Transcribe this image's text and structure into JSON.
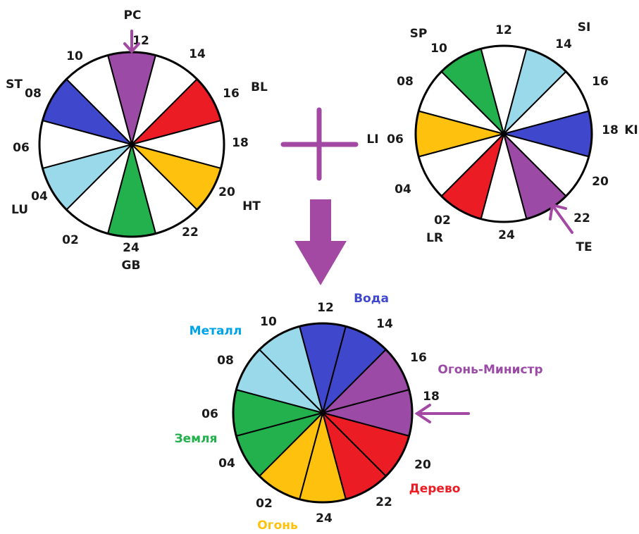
{
  "colors": {
    "purple": "#9B4BA6",
    "red": "#EC1C24",
    "yellow": "#FEC20E",
    "green": "#22B14C",
    "blue": "#3F48CC",
    "lightblue": "#99D9EA",
    "white": "#FFFFFF",
    "cyan": "#00A2E8",
    "arrow": "#A349A4"
  },
  "wheel_left": {
    "hour_labels": [
      "12",
      "14",
      "16",
      "18",
      "20",
      "22",
      "24",
      "02",
      "04",
      "06",
      "08",
      "10"
    ],
    "slices": [
      "purple",
      "white",
      "red",
      "white",
      "yellow",
      "white",
      "green",
      "white",
      "lightblue",
      "white",
      "blue",
      "white"
    ],
    "organs": {
      "pc": "PC",
      "bl": "BL",
      "ht": "HT",
      "gb": "GB",
      "lu": "LU",
      "st": "ST"
    }
  },
  "wheel_right": {
    "hour_labels": [
      "12",
      "14",
      "16",
      "18",
      "20",
      "22",
      "24",
      "02",
      "04",
      "06",
      "08",
      "10"
    ],
    "slices": [
      "white",
      "lightblue",
      "white",
      "blue",
      "white",
      "purple",
      "white",
      "red",
      "white",
      "yellow",
      "white",
      "green"
    ],
    "organs": {
      "sp": "SP",
      "si": "SI",
      "ki": "KI",
      "li": "LI",
      "te": "TE",
      "lr": "LR"
    }
  },
  "wheel_bottom": {
    "hour_labels": [
      "12",
      "14",
      "16",
      "18",
      "20",
      "22",
      "24",
      "02",
      "04",
      "06",
      "08",
      "10"
    ],
    "slices": [
      "blue",
      "blue",
      "purple",
      "purple",
      "red",
      "red",
      "yellow",
      "yellow",
      "green",
      "green",
      "lightblue",
      "lightblue"
    ],
    "elements": {
      "water": "Вода",
      "fire_minister": "Огонь-Министр",
      "wood": "Дерево",
      "fire": "Огонь",
      "earth": "Земля",
      "metal": "Металл"
    }
  },
  "symbols": {
    "plus": "+",
    "result_arrow": "down-arrow"
  }
}
